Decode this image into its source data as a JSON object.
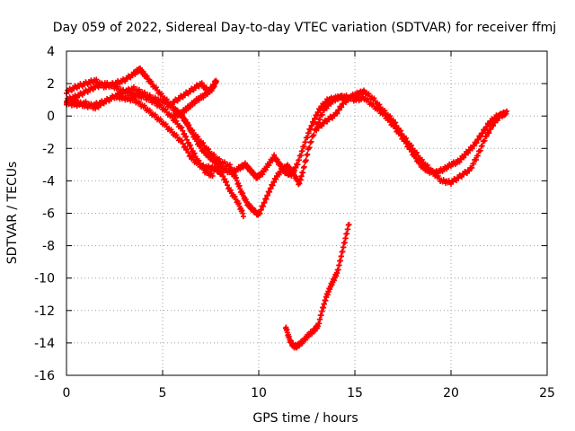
{
  "chart_data": {
    "type": "scatter",
    "title": "Day 059 of 2022, Sidereal Day-to-day VTEC variation (SDTVAR) for receiver ffmj",
    "xlabel": "GPS time / hours",
    "ylabel": "SDTVAR / TECUs",
    "xlim": [
      0,
      25
    ],
    "ylim": [
      -16,
      4
    ],
    "xticks": [
      0,
      5,
      10,
      15,
      20,
      25
    ],
    "yticks": [
      -16,
      -14,
      -12,
      -10,
      -8,
      -6,
      -4,
      -2,
      0,
      2,
      4
    ],
    "xtick_labels": [
      "0",
      "5",
      "10",
      "15",
      "20",
      "25"
    ],
    "ytick_labels": [
      "-16",
      "-14",
      "-12",
      "-10",
      "-8",
      "-6",
      "-4",
      "-2",
      "0",
      "2",
      "4"
    ],
    "grid": true,
    "legend": "none",
    "marker": "plus",
    "series_color": "#ff0000",
    "series": [
      {
        "values": [
          [
            0,
            1.5
          ],
          [
            0.5,
            1.8
          ],
          [
            1,
            2.0
          ],
          [
            1.5,
            2.2
          ],
          [
            2,
            1.8
          ],
          [
            2.5,
            2.0
          ],
          [
            3,
            2.2
          ],
          [
            3.5,
            2.6
          ],
          [
            3.8,
            2.9
          ],
          [
            4.1,
            2.5
          ],
          [
            4.5,
            1.9
          ],
          [
            5,
            1.2
          ],
          [
            5.5,
            0.6
          ],
          [
            6,
            0.0
          ],
          [
            6.3,
            -0.5
          ],
          [
            6.6,
            -1.2
          ],
          [
            7,
            -2.0
          ],
          [
            7.4,
            -2.5
          ],
          [
            7.8,
            -2.9
          ],
          [
            8.2,
            -3.3
          ],
          [
            8.6,
            -3.5
          ],
          [
            9,
            -3.2
          ],
          [
            9.3,
            -3.0
          ],
          [
            9.6,
            -3.4
          ],
          [
            9.9,
            -3.8
          ],
          [
            10.2,
            -3.5
          ],
          [
            10.5,
            -3.0
          ],
          [
            10.8,
            -2.5
          ],
          [
            11.1,
            -3.0
          ],
          [
            11.4,
            -3.5
          ],
          [
            11.7,
            -3.6
          ],
          [
            12,
            -3.0
          ],
          [
            12.3,
            -2.0
          ],
          [
            12.6,
            -1.0
          ],
          [
            12.9,
            -0.2
          ],
          [
            13.2,
            0.5
          ],
          [
            13.6,
            1.0
          ],
          [
            14,
            1.1
          ],
          [
            14.5,
            1.2
          ],
          [
            15,
            1.0
          ],
          [
            15.5,
            1.1
          ],
          [
            16,
            0.6
          ],
          [
            16.5,
            0.1
          ],
          [
            17,
            -0.6
          ],
          [
            17.5,
            -1.4
          ],
          [
            18,
            -2.3
          ],
          [
            18.4,
            -3.0
          ],
          [
            18.8,
            -3.4
          ],
          [
            19.2,
            -3.5
          ],
          [
            19.6,
            -3.3
          ],
          [
            20,
            -3.0
          ],
          [
            20.4,
            -2.8
          ],
          [
            20.8,
            -2.3
          ],
          [
            21.2,
            -1.8
          ],
          [
            21.6,
            -1.1
          ],
          [
            22,
            -0.4
          ],
          [
            22.4,
            0.0
          ],
          [
            22.8,
            0.1
          ]
        ]
      },
      {
        "values": [
          [
            0,
            1.0
          ],
          [
            0.5,
            1.2
          ],
          [
            1,
            1.5
          ],
          [
            1.5,
            1.8
          ],
          [
            2,
            2.0
          ],
          [
            2.5,
            1.8
          ],
          [
            3,
            1.5
          ],
          [
            3.5,
            1.3
          ],
          [
            4,
            1.2
          ],
          [
            4.5,
            0.9
          ],
          [
            5,
            0.5
          ],
          [
            5.5,
            -0.1
          ],
          [
            6,
            -0.8
          ],
          [
            6.4,
            -1.8
          ],
          [
            6.8,
            -2.7
          ],
          [
            7.2,
            -3.4
          ],
          [
            7.6,
            -3.7
          ]
        ]
      },
      {
        "values": [
          [
            0,
            0.8
          ],
          [
            0.5,
            0.7
          ],
          [
            1,
            0.8
          ],
          [
            1.5,
            0.5
          ],
          [
            2,
            0.9
          ],
          [
            2.5,
            1.2
          ],
          [
            3,
            1.5
          ],
          [
            3.5,
            1.7
          ],
          [
            4,
            1.4
          ],
          [
            4.5,
            1.1
          ],
          [
            5,
            0.9
          ],
          [
            5.5,
            0.5
          ],
          [
            6,
            0.0
          ],
          [
            6.5,
            -0.9
          ],
          [
            7,
            -1.6
          ],
          [
            7.5,
            -2.3
          ],
          [
            8,
            -2.8
          ],
          [
            8.5,
            -3.1
          ],
          [
            8.8,
            -3.8
          ],
          [
            9.1,
            -4.7
          ],
          [
            9.4,
            -5.4
          ],
          [
            9.7,
            -5.8
          ],
          [
            10,
            -6.1
          ],
          [
            10.3,
            -5.3
          ],
          [
            10.6,
            -4.5
          ],
          [
            10.9,
            -3.8
          ],
          [
            11.2,
            -3.3
          ],
          [
            11.5,
            -3.1
          ],
          [
            11.8,
            -3.5
          ],
          [
            12.1,
            -4.2
          ],
          [
            12.3,
            -3.4
          ],
          [
            12.6,
            -2.0
          ],
          [
            13,
            -0.6
          ],
          [
            13.4,
            0.4
          ],
          [
            13.8,
            0.9
          ],
          [
            14.2,
            1.2
          ],
          [
            14.6,
            1.1
          ]
        ]
      },
      {
        "values": [
          [
            0,
            0.9
          ],
          [
            0.5,
            0.9
          ],
          [
            1,
            0.6
          ],
          [
            1.5,
            0.7
          ],
          [
            2,
            0.9
          ],
          [
            2.5,
            1.2
          ],
          [
            3,
            1.1
          ],
          [
            3.5,
            1.0
          ],
          [
            4,
            0.6
          ],
          [
            4.5,
            0.1
          ],
          [
            5,
            -0.4
          ],
          [
            5.5,
            -1.0
          ],
          [
            6,
            -1.6
          ],
          [
            6.5,
            -2.6
          ],
          [
            7,
            -3.1
          ],
          [
            7.5,
            -3.2
          ],
          [
            7.8,
            -3.3
          ],
          [
            8.1,
            -3.6
          ],
          [
            8.5,
            -4.6
          ],
          [
            8.9,
            -5.3
          ],
          [
            9.2,
            -6.1
          ]
        ]
      },
      {
        "values": [
          [
            5.5,
            0.8
          ],
          [
            6,
            1.2
          ],
          [
            6.5,
            1.6
          ],
          [
            7,
            2.0
          ],
          [
            7.4,
            1.5
          ],
          [
            7.8,
            2.2
          ],
          [
            7.6,
            1.7
          ],
          [
            7.2,
            1.3
          ],
          [
            6.8,
            1.0
          ],
          [
            6.4,
            0.6
          ],
          [
            6,
            0.2
          ],
          [
            5.6,
            0.0
          ]
        ]
      },
      {
        "values": [
          [
            13,
            -0.8
          ],
          [
            13.5,
            -0.3
          ],
          [
            14,
            0.1
          ],
          [
            14.4,
            0.8
          ],
          [
            14.8,
            1.2
          ],
          [
            15.2,
            1.4
          ],
          [
            15.5,
            1.5
          ],
          [
            16,
            1.0
          ],
          [
            16.5,
            0.3
          ],
          [
            17,
            -0.3
          ],
          [
            17.5,
            -1.2
          ],
          [
            18,
            -2.0
          ],
          [
            18.5,
            -2.8
          ],
          [
            19,
            -3.4
          ],
          [
            19.5,
            -4.0
          ],
          [
            20,
            -4.1
          ],
          [
            20.5,
            -3.7
          ],
          [
            21,
            -3.3
          ],
          [
            21.4,
            -2.4
          ],
          [
            21.8,
            -1.3
          ],
          [
            22.2,
            -0.5
          ],
          [
            22.6,
            0.1
          ],
          [
            22.9,
            0.2
          ]
        ]
      },
      {
        "values": [
          [
            11.4,
            -13.0
          ],
          [
            11.6,
            -13.8
          ],
          [
            11.8,
            -14.2
          ],
          [
            12.0,
            -14.2
          ],
          [
            12.3,
            -13.9
          ],
          [
            12.6,
            -13.5
          ],
          [
            12.9,
            -13.2
          ],
          [
            13.1,
            -12.9
          ],
          [
            13.3,
            -12.0
          ],
          [
            13.5,
            -11.2
          ],
          [
            13.7,
            -10.6
          ],
          [
            13.9,
            -10.1
          ],
          [
            14.1,
            -9.6
          ],
          [
            14.3,
            -8.6
          ],
          [
            14.5,
            -7.6
          ],
          [
            14.7,
            -6.6
          ]
        ]
      }
    ]
  }
}
